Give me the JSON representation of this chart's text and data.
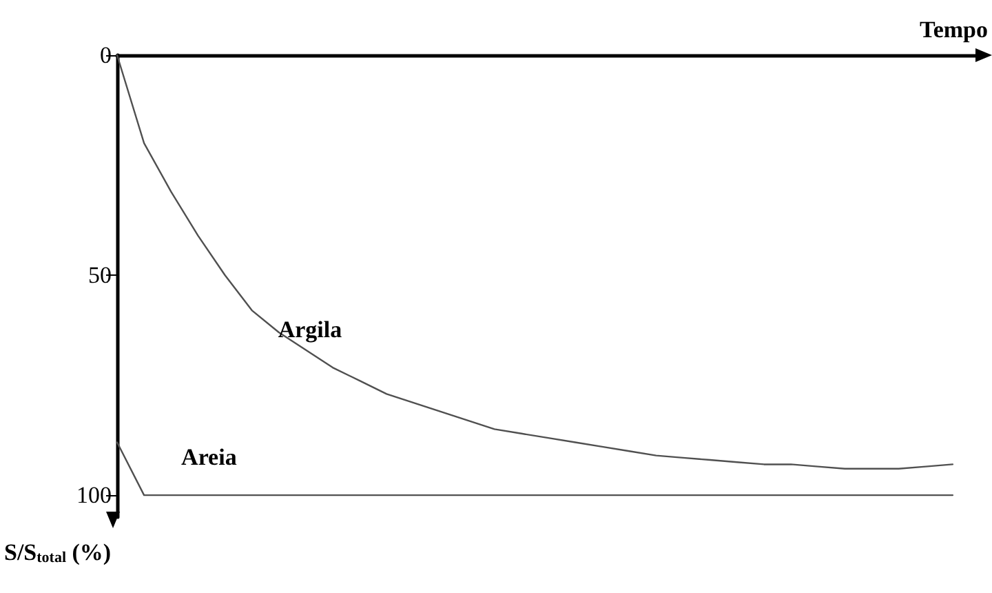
{
  "chart_data": {
    "type": "line",
    "xlabel": "Tempo",
    "ylabel": "S/S$_{total}$ (%)",
    "categories": [
      null,
      null,
      null,
      null,
      null,
      null,
      null,
      null,
      null,
      null,
      null,
      null,
      null,
      null,
      null,
      null,
      null,
      null,
      null,
      null,
      null,
      null,
      null,
      null,
      null,
      null,
      null,
      null,
      null,
      null,
      null,
      null,
      null
    ],
    "series": [
      {
        "name": "Argila",
        "color": "#505050",
        "values": [
          0,
          20,
          31,
          41,
          50,
          58,
          63,
          67,
          71,
          74,
          77,
          79,
          81,
          83,
          85,
          86,
          87,
          88,
          89,
          90,
          91,
          91.5,
          92,
          92.5,
          93,
          93,
          93.5,
          94,
          94,
          94,
          93.5,
          93,
          null
        ]
      },
      {
        "name": "Areia",
        "color": "#505050",
        "values": [
          88,
          100,
          100,
          100,
          100,
          100,
          100,
          100,
          100,
          100,
          100,
          100,
          100,
          100,
          100,
          100,
          100,
          100,
          100,
          100,
          100,
          100,
          100,
          100,
          100,
          100,
          100,
          100,
          100,
          100,
          100,
          100,
          null
        ]
      }
    ],
    "ylim": [
      105,
      0
    ],
    "yticks": [
      0,
      50,
      100
    ],
    "tick_labels": "y",
    "grid": false,
    "legend": false,
    "marker": "none",
    "line_style": "solid"
  }
}
